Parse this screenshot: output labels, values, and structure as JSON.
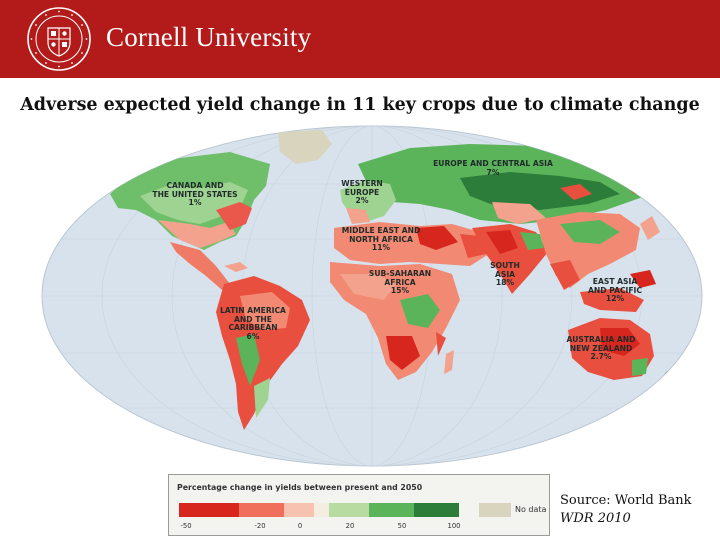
{
  "header": {
    "university_name": "Cornell University",
    "seal_name": "university-seal",
    "banner_color": "#b31b1b"
  },
  "title": "Adverse expected yield change in 11 key crops due to climate change",
  "map": {
    "ocean_color": "#d7e2ec",
    "regions": [
      {
        "key": "canada_us",
        "label": "CANADA AND\nTHE UNITED STATES\n1%",
        "value_pct": 1
      },
      {
        "key": "europe_central_asia",
        "label": "EUROPE AND CENTRAL ASIA\n7%",
        "value_pct": 7
      },
      {
        "key": "western_europe",
        "label": "WESTERN\nEUROPE\n2%",
        "value_pct": 2
      },
      {
        "key": "mena",
        "label": "MIDDLE EAST AND\nNORTH AFRICA\n11%",
        "value_pct": 11
      },
      {
        "key": "south_asia",
        "label": "SOUTH\nASIA\n18%",
        "value_pct": 18
      },
      {
        "key": "sub_saharan_africa",
        "label": "SUB-SAHARAN\nAFRICA\n15%",
        "value_pct": 15
      },
      {
        "key": "east_asia_pacific",
        "label": "EAST ASIA\nAND PACIFIC\n12%",
        "value_pct": 12
      },
      {
        "key": "latin_america_caribbean",
        "label": "LATIN AMERICA\nAND THE\nCARIBBEAN\n6%",
        "value_pct": 6
      },
      {
        "key": "australia_nz",
        "label": "AUSTRALIA AND\nNEW ZEALAND\n2.7%",
        "value_pct": 2.7
      }
    ]
  },
  "legend": {
    "title": "Percentage change in yields between present and 2050",
    "ticks": [
      "-50",
      "-20",
      "0",
      "20",
      "50",
      "100"
    ],
    "tick_values": [
      -50,
      -20,
      0,
      20,
      50,
      100
    ],
    "no_data_label": "No data",
    "colors": {
      "loss_strong": "#d7261e",
      "loss_mid": "#ef6f5c",
      "loss_light": "#f8c2b0",
      "neutral": "#f4eee2",
      "gain_light": "#b7dba0",
      "gain_mid": "#5bb45a",
      "gain_strong": "#2c7c3a",
      "no_data": "#d9d4bd"
    }
  },
  "source": {
    "line1": "Source: World Bank",
    "line2": "WDR 2010"
  }
}
